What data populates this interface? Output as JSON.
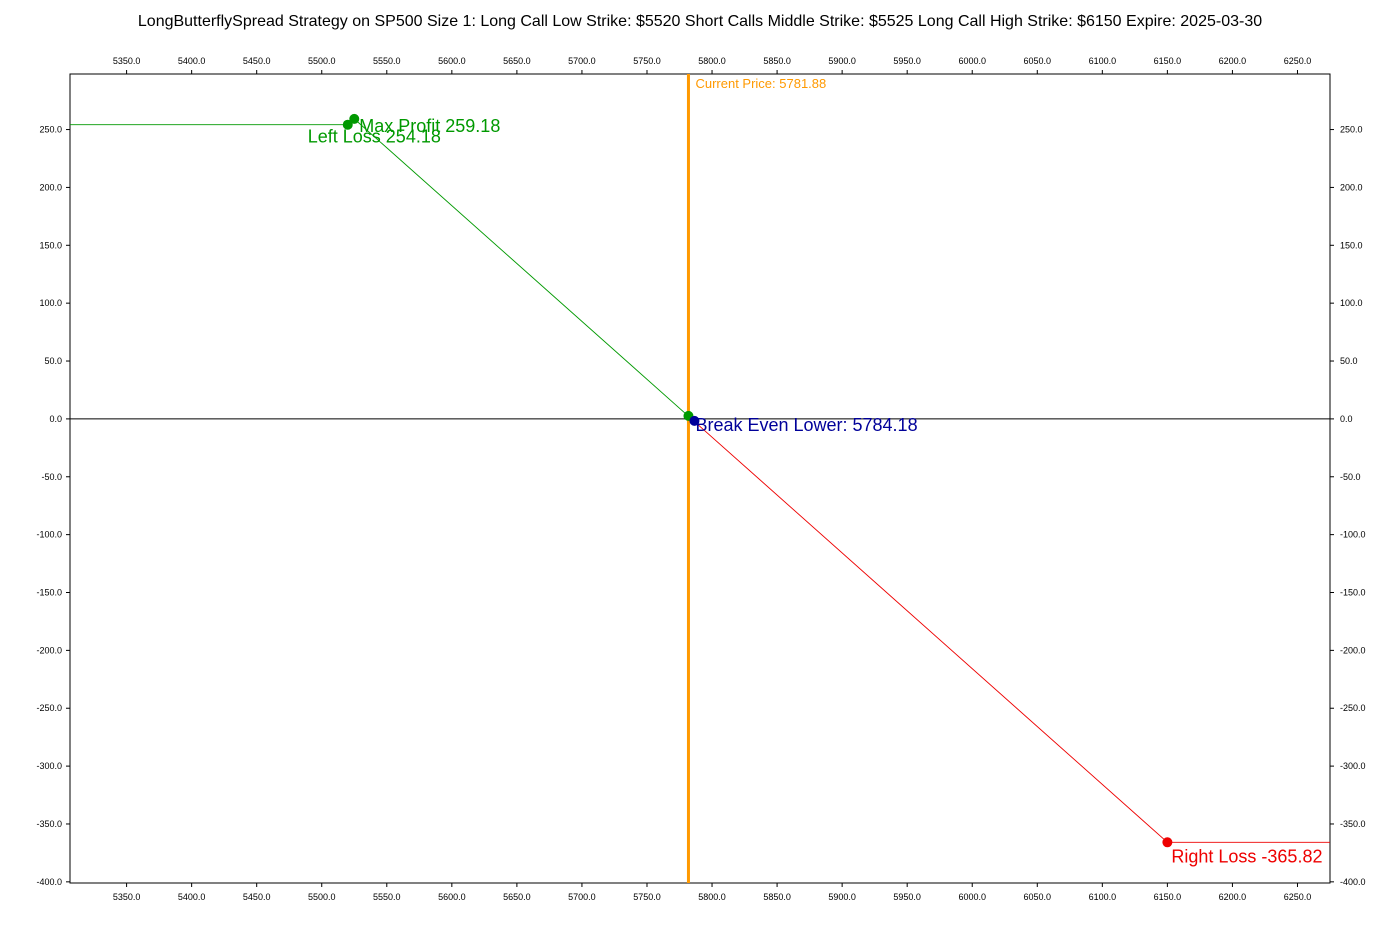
{
  "chart_data": {
    "type": "line",
    "title": "LongButterflySpread Strategy on SP500 Size 1:  Long Call Low Strike: $5520  Short Calls Middle Strike: $5525  Long Call High Strike: $6150  Expire: 2025-03-30",
    "xlabel": "",
    "ylabel": "",
    "xlim": [
      5306.5,
      6275
    ],
    "ylim": [
      -401,
      298
    ],
    "grid": false,
    "x_ticks": [
      5350,
      5400,
      5450,
      5500,
      5550,
      5600,
      5650,
      5700,
      5750,
      5800,
      5850,
      5900,
      5950,
      6000,
      6050,
      6100,
      6150,
      6200,
      6250
    ],
    "y_ticks": [
      250,
      200,
      150,
      100,
      50,
      0,
      -50,
      -100,
      -150,
      -200,
      -250,
      -300,
      -350,
      -400
    ],
    "series": [
      {
        "name": "",
        "color": "#009900",
        "x": [
          5306.5,
          5520,
          5525,
          5784.18
        ],
        "y": [
          254.18,
          254.18,
          259.18,
          0
        ]
      },
      {
        "name": "",
        "color": "#ee0000",
        "x": [
          5784.18,
          6150,
          6275
        ],
        "y": [
          0,
          -365.82,
          -365.82
        ]
      }
    ],
    "current_price": {
      "x": 5781.88,
      "label": "Current Price: 5781.88",
      "color": "#ff9900"
    },
    "annotations": [
      {
        "key": "max_profit",
        "label": "Max Profit 259.18",
        "x": 5525,
        "y": 259.18,
        "color": "#009900"
      },
      {
        "key": "left_loss",
        "label": "Left Loss 254.18",
        "x": 5520,
        "y": 254.18,
        "color": "#009900"
      },
      {
        "key": "break_even",
        "label": "Break Even Lower: 5784.18",
        "x": 5784.18,
        "y": 0,
        "color": "#000099"
      },
      {
        "key": "right_loss",
        "label": "Right Loss -365.82",
        "x": 6150,
        "y": -365.82,
        "color": "#ee0000"
      }
    ]
  }
}
